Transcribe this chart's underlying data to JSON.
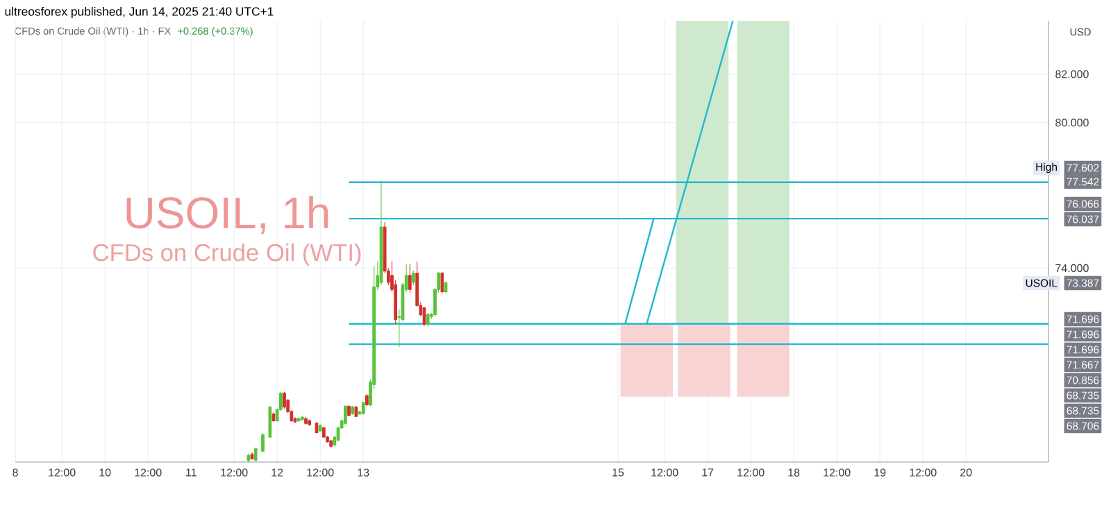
{
  "chart_data": {
    "type": "candlestick",
    "title": "USOIL, 1h",
    "subtitle": "CFDs on Crude Oil (WTI)",
    "ylabel": "USD",
    "annotations": [
      "ultreosforex published, Jun 14, 2025 21:40 UTC+1",
      "CFDs on Crude Oil (WTI) · 1h · FX",
      "+0.268 (+0.37%)",
      "77.602",
      "High",
      "77.542",
      "76.066",
      "76.037",
      "73.387",
      "USOIL",
      "71.696",
      "71.696",
      "71.696",
      "71.667",
      "70.856",
      "68.735",
      "68.735",
      "68.706"
    ],
    "xlim": [
      "2025-06-08T23:00",
      "2025-06-20T23:00"
    ],
    "ylim": [
      66.0,
      84.2
    ],
    "xticks": [
      {
        "value": "2025-06-08T23:00",
        "label": "8"
      },
      {
        "value": "2025-06-09T12:00",
        "label": "12:00"
      },
      {
        "value": "2025-06-10T00:00",
        "label": "10"
      },
      {
        "value": "2025-06-10T12:00",
        "label": "12:00"
      },
      {
        "value": "2025-06-11T00:00",
        "label": "11"
      },
      {
        "value": "2025-06-11T12:00",
        "label": "12:00"
      },
      {
        "value": "2025-06-12T00:00",
        "label": "12"
      },
      {
        "value": "2025-06-12T12:00",
        "label": "12:00"
      },
      {
        "value": "2025-06-13T00:00",
        "label": "13"
      },
      {
        "value": "2025-06-15T23:00",
        "label": "15"
      },
      {
        "value": "2025-06-16T12:00",
        "label": "12:00"
      },
      {
        "value": "2025-06-17T00:00",
        "label": "17"
      },
      {
        "value": "2025-06-17T12:00",
        "label": "12:00"
      },
      {
        "value": "2025-06-18T00:00",
        "label": "18"
      },
      {
        "value": "2025-06-18T12:00",
        "label": "12:00"
      },
      {
        "value": "2025-06-19T00:00",
        "label": "19"
      },
      {
        "value": "2025-06-19T12:00",
        "label": "12:00"
      },
      {
        "value": "2025-06-20T00:00",
        "label": "20"
      }
    ],
    "yticks": [
      {
        "value": 74,
        "label": "74.000"
      },
      {
        "value": 80,
        "label": "80.000"
      },
      {
        "value": 82,
        "label": "82.000"
      }
    ],
    "grid": true,
    "series": [
      {
        "type": "bar",
        "color": "#f9d3d3",
        "x": [
          "2025-06-16T07:00",
          "2025-06-16T23:00",
          "2025-06-17T15:30"
        ],
        "base": [
          68.7,
          68.7,
          68.7
        ],
        "values": [
          3.0,
          3.0,
          3.0
        ]
      },
      {
        "type": "bar",
        "color": "#cfe9cf",
        "x": [
          "2025-06-16T22:30",
          "2025-06-17T15:30"
        ],
        "base": [
          71.7,
          71.7
        ],
        "values": [
          12.5,
          12.5
        ]
      },
      {
        "type": "line",
        "color": "#22b8cc",
        "x": [
          "2025-06-12T20:00",
          "2025-06-20T23:00"
        ],
        "values": [
          77.54,
          77.54
        ]
      },
      {
        "type": "line",
        "color": "#22b8cc",
        "x": [
          "2025-06-12T20:00",
          "2025-06-20T23:00"
        ],
        "values": [
          76.04,
          76.04
        ]
      },
      {
        "type": "line",
        "color": "#22b8cc",
        "x": [
          "2025-06-12T20:00",
          "2025-06-20T23:00"
        ],
        "values": [
          71.7,
          71.7
        ]
      },
      {
        "type": "line",
        "color": "#22b8cc",
        "x": [
          "2025-06-12T20:00",
          "2025-06-20T23:00"
        ],
        "values": [
          70.86,
          70.86
        ]
      },
      {
        "type": "line",
        "color": "#22b8cc",
        "x": [
          "2025-06-16T01:00",
          "2025-06-16T09:00"
        ],
        "values": [
          71.7,
          76.07
        ]
      },
      {
        "type": "line",
        "color": "#22b8cc",
        "x": [
          "2025-06-16T07:00",
          "2025-06-17T07:00"
        ],
        "values": [
          71.7,
          84.2
        ]
      },
      {
        "x": [
          "2025-06-11T16:00",
          "2025-06-11T17:00",
          "2025-06-11T18:00",
          "2025-06-11T20:00",
          "2025-06-11T22:00",
          "2025-06-11T23:00",
          "2025-06-12T00:00",
          "2025-06-12T01:00",
          "2025-06-12T02:00",
          "2025-06-12T03:00",
          "2025-06-12T04:00",
          "2025-06-12T05:00",
          "2025-06-12T06:00",
          "2025-06-12T07:00",
          "2025-06-12T08:00",
          "2025-06-12T09:00",
          "2025-06-12T11:00",
          "2025-06-12T12:00",
          "2025-06-12T13:00",
          "2025-06-12T14:00",
          "2025-06-12T15:00",
          "2025-06-12T16:00",
          "2025-06-12T17:00",
          "2025-06-12T18:00",
          "2025-06-12T19:00",
          "2025-06-12T20:00",
          "2025-06-12T21:00",
          "2025-06-12T22:00",
          "2025-06-12T23:00",
          "2025-06-13T00:00",
          "2025-06-13T01:00",
          "2025-06-13T02:00",
          "2025-06-13T03:00",
          "2025-06-13T04:00",
          "2025-06-13T05:00",
          "2025-06-13T06:00",
          "2025-06-13T07:00",
          "2025-06-13T08:00",
          "2025-06-13T09:00",
          "2025-06-13T10:00",
          "2025-06-13T11:00",
          "2025-06-13T12:00",
          "2025-06-13T13:00",
          "2025-06-13T14:00",
          "2025-06-13T15:00",
          "2025-06-13T16:00",
          "2025-06-13T17:00",
          "2025-06-13T18:00",
          "2025-06-13T19:00",
          "2025-06-13T20:00",
          "2025-06-13T21:00",
          "2025-06-13T22:00",
          "2025-06-13T23:00"
        ],
        "ohlc": [
          [
            66.07,
            66.35,
            66.0,
            66.27
          ],
          [
            66.32,
            66.4,
            66.1,
            66.13
          ],
          [
            66.07,
            66.6,
            66.05,
            66.55
          ],
          [
            66.45,
            67.2,
            66.4,
            67.12
          ],
          [
            67.03,
            68.3,
            67.0,
            68.27
          ],
          [
            67.98,
            68.05,
            67.65,
            67.7
          ],
          [
            67.7,
            68.2,
            67.65,
            68.17
          ],
          [
            68.17,
            68.9,
            68.1,
            68.84
          ],
          [
            68.84,
            68.9,
            68.2,
            68.27
          ],
          [
            68.55,
            68.6,
            68.0,
            68.08
          ],
          [
            68.08,
            68.15,
            67.65,
            67.7
          ],
          [
            67.79,
            67.85,
            67.6,
            67.66
          ],
          [
            67.7,
            67.85,
            67.65,
            67.79
          ],
          [
            67.75,
            67.9,
            67.7,
            67.85
          ],
          [
            67.79,
            67.85,
            67.55,
            67.6
          ],
          [
            67.7,
            67.75,
            67.5,
            67.54
          ],
          [
            67.6,
            67.65,
            67.18,
            67.22
          ],
          [
            67.28,
            67.55,
            67.25,
            67.5
          ],
          [
            67.41,
            67.45,
            67.0,
            67.03
          ],
          [
            67.03,
            67.08,
            66.8,
            66.84
          ],
          [
            66.88,
            66.92,
            66.6,
            66.65
          ],
          [
            66.7,
            67.08,
            66.65,
            67.03
          ],
          [
            66.9,
            67.45,
            66.85,
            67.41
          ],
          [
            67.41,
            67.75,
            67.38,
            67.7
          ],
          [
            67.6,
            68.35,
            67.55,
            68.3
          ],
          [
            68.3,
            68.35,
            67.88,
            67.92
          ],
          [
            68.0,
            68.32,
            67.95,
            68.27
          ],
          [
            68.27,
            68.32,
            67.85,
            67.88
          ],
          [
            67.98,
            68.12,
            67.95,
            68.07
          ],
          [
            68.0,
            68.5,
            67.95,
            68.45
          ],
          [
            68.74,
            68.8,
            68.3,
            68.36
          ],
          [
            68.36,
            69.4,
            68.3,
            69.31
          ],
          [
            69.2,
            74.1,
            69.0,
            73.22
          ],
          [
            73.22,
            74.27,
            73.1,
            73.7
          ],
          [
            73.41,
            77.602,
            73.3,
            75.69
          ],
          [
            75.69,
            75.9,
            73.8,
            73.88
          ],
          [
            73.88,
            74.0,
            73.3,
            73.41
          ],
          [
            73.7,
            74.3,
            73.0,
            73.12
          ],
          [
            73.31,
            73.5,
            71.69,
            71.88
          ],
          [
            71.97,
            72.3,
            70.74,
            72.0
          ],
          [
            71.88,
            73.4,
            71.8,
            73.31
          ],
          [
            73.12,
            74.17,
            73.0,
            73.7
          ],
          [
            73.7,
            74.17,
            73.0,
            73.12
          ],
          [
            73.41,
            73.9,
            73.3,
            73.79
          ],
          [
            73.79,
            74.27,
            72.4,
            72.46
          ],
          [
            72.46,
            72.6,
            72.0,
            72.08
          ],
          [
            72.36,
            72.4,
            71.6,
            71.69
          ],
          [
            71.69,
            72.15,
            71.6,
            72.08
          ],
          [
            72.0,
            72.15,
            71.9,
            72.08
          ],
          [
            72.08,
            73.2,
            72.0,
            73.12
          ],
          [
            73.12,
            73.85,
            73.0,
            73.79
          ],
          [
            73.79,
            73.85,
            72.95,
            73.03
          ],
          [
            73.03,
            73.45,
            72.95,
            73.387
          ]
        ],
        "colors": [
          "#58c23a",
          "#d0312d",
          "#58c23a",
          "#58c23a",
          "#58c23a",
          "#d0312d",
          "#58c23a",
          "#58c23a",
          "#d0312d",
          "#d0312d",
          "#d0312d",
          "#d0312d",
          "#58c23a",
          "#58c23a",
          "#d0312d",
          "#d0312d",
          "#d0312d",
          "#58c23a",
          "#d0312d",
          "#d0312d",
          "#d0312d",
          "#58c23a",
          "#58c23a",
          "#58c23a",
          "#58c23a",
          "#d0312d",
          "#58c23a",
          "#d0312d",
          "#58c23a",
          "#58c23a",
          "#d0312d",
          "#58c23a",
          "#58c23a",
          "#58c23a",
          "#58c23a",
          "#d0312d",
          "#d0312d",
          "#d0312d",
          "#d0312d",
          "#58c23a",
          "#58c23a",
          "#58c23a",
          "#d0312d",
          "#58c23a",
          "#d0312d",
          "#d0312d",
          "#d0312d",
          "#58c23a",
          "#58c23a",
          "#58c23a",
          "#58c23a",
          "#d0312d",
          "#58c23a"
        ]
      }
    ]
  }
}
